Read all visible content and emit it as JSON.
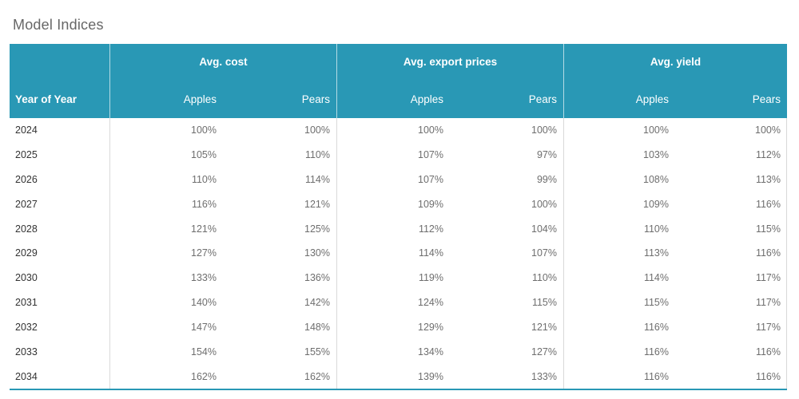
{
  "title": "Model Indices",
  "colors": {
    "header_bg": "#2998b5",
    "header_text": "#ffffff",
    "title_text": "#676767",
    "year_text": "#333333",
    "value_text": "#6e6e6e",
    "grid_line": "#d9d9d9",
    "bottom_border": "#2998b5"
  },
  "table": {
    "row_header": "Year of Year",
    "groups": [
      {
        "label": "Avg. cost",
        "columns": [
          "Apples",
          "Pears"
        ]
      },
      {
        "label": "Avg. export prices",
        "columns": [
          "Apples",
          "Pears"
        ]
      },
      {
        "label": "Avg. yield",
        "columns": [
          "Apples",
          "Pears"
        ]
      }
    ],
    "rows": [
      {
        "year": "2024",
        "values": [
          "100%",
          "100%",
          "100%",
          "100%",
          "100%",
          "100%"
        ]
      },
      {
        "year": "2025",
        "values": [
          "105%",
          "110%",
          "107%",
          "97%",
          "103%",
          "112%"
        ]
      },
      {
        "year": "2026",
        "values": [
          "110%",
          "114%",
          "107%",
          "99%",
          "108%",
          "113%"
        ]
      },
      {
        "year": "2027",
        "values": [
          "116%",
          "121%",
          "109%",
          "100%",
          "109%",
          "116%"
        ]
      },
      {
        "year": "2028",
        "values": [
          "121%",
          "125%",
          "112%",
          "104%",
          "110%",
          "115%"
        ]
      },
      {
        "year": "2029",
        "values": [
          "127%",
          "130%",
          "114%",
          "107%",
          "113%",
          "116%"
        ]
      },
      {
        "year": "2030",
        "values": [
          "133%",
          "136%",
          "119%",
          "110%",
          "114%",
          "117%"
        ]
      },
      {
        "year": "2031",
        "values": [
          "140%",
          "142%",
          "124%",
          "115%",
          "115%",
          "117%"
        ]
      },
      {
        "year": "2032",
        "values": [
          "147%",
          "148%",
          "129%",
          "121%",
          "116%",
          "117%"
        ]
      },
      {
        "year": "2033",
        "values": [
          "154%",
          "155%",
          "134%",
          "127%",
          "116%",
          "116%"
        ]
      },
      {
        "year": "2034",
        "values": [
          "162%",
          "162%",
          "139%",
          "133%",
          "116%",
          "116%"
        ]
      }
    ]
  },
  "chart_data": {
    "type": "table",
    "title": "Model Indices",
    "row_label": "Year of Year",
    "column_groups": [
      "Avg. cost",
      "Avg. export prices",
      "Avg. yield"
    ],
    "columns": [
      "Avg. cost Apples",
      "Avg. cost Pears",
      "Avg. export prices Apples",
      "Avg. export prices Pears",
      "Avg. yield Apples",
      "Avg. yield Pears"
    ],
    "unit": "percent",
    "years": [
      2024,
      2025,
      2026,
      2027,
      2028,
      2029,
      2030,
      2031,
      2032,
      2033,
      2034
    ],
    "values_pct": [
      [
        100,
        100,
        100,
        100,
        100,
        100
      ],
      [
        105,
        110,
        107,
        97,
        103,
        112
      ],
      [
        110,
        114,
        107,
        99,
        108,
        113
      ],
      [
        116,
        121,
        109,
        100,
        109,
        116
      ],
      [
        121,
        125,
        112,
        104,
        110,
        115
      ],
      [
        127,
        130,
        114,
        107,
        113,
        116
      ],
      [
        133,
        136,
        119,
        110,
        114,
        117
      ],
      [
        140,
        142,
        124,
        115,
        115,
        117
      ],
      [
        147,
        148,
        129,
        121,
        116,
        117
      ],
      [
        154,
        155,
        134,
        127,
        116,
        116
      ],
      [
        162,
        162,
        139,
        133,
        116,
        116
      ]
    ]
  }
}
